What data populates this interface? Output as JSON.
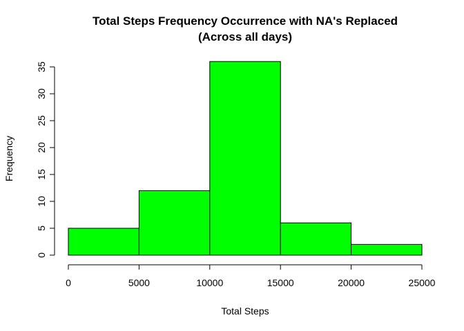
{
  "chart_data": {
    "type": "bar",
    "title": "Total Steps Frequency Occurrence with NA's Replaced",
    "subtitle": "(Across all days)",
    "xlabel": "Total Steps",
    "ylabel": "Frequency",
    "bins": [
      {
        "from": 0,
        "to": 5000,
        "value": 5
      },
      {
        "from": 5000,
        "to": 10000,
        "value": 12
      },
      {
        "from": 10000,
        "to": 15000,
        "value": 36
      },
      {
        "from": 15000,
        "to": 20000,
        "value": 6
      },
      {
        "from": 20000,
        "to": 25000,
        "value": 2
      }
    ],
    "xlim": [
      0,
      25000
    ],
    "ylim": [
      0,
      35
    ],
    "x_ticks": [
      0,
      5000,
      10000,
      15000,
      20000,
      25000
    ],
    "x_tick_labels": [
      "0",
      "5000",
      "10000",
      "15000",
      "20000",
      "25000"
    ],
    "y_ticks": [
      0,
      5,
      10,
      15,
      20,
      25,
      30,
      35
    ],
    "y_tick_labels": [
      "0",
      "5",
      "10",
      "15",
      "20",
      "25",
      "30",
      "35"
    ],
    "bar_color": "#00FF00",
    "grid": false,
    "legend": "none"
  }
}
